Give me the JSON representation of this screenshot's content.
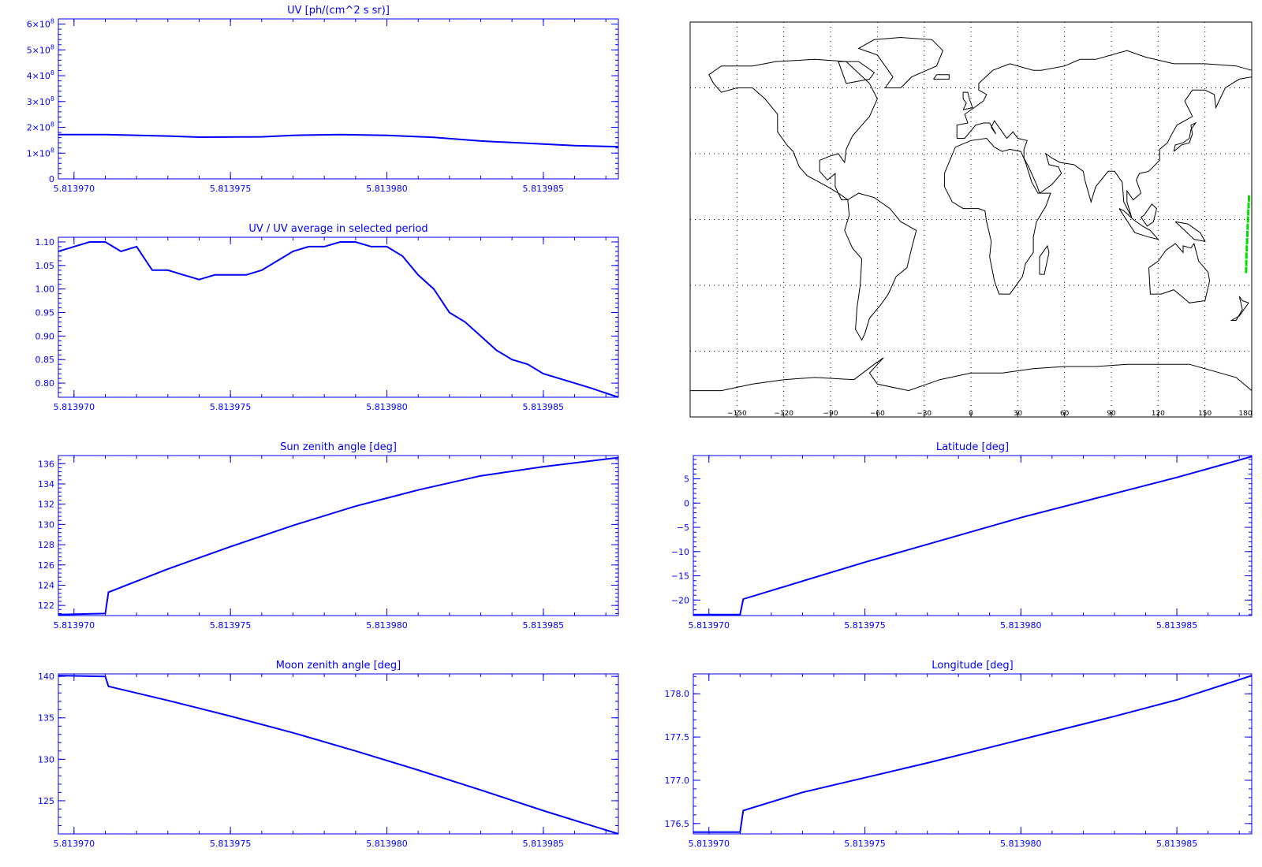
{
  "colors": {
    "plot": "#0000ff",
    "map_axis": "#000000",
    "map_track": "#00dd00",
    "background": "#ffffff"
  },
  "chart_data": [
    {
      "id": "uv",
      "type": "line",
      "title": "UV [ph/(cm^2 s sr)]",
      "xlim": [
        5.8139695,
        5.8139874
      ],
      "ylim": [
        0,
        6.2
      ],
      "x_ticks": [
        "5.813970",
        "5.813975",
        "5.813980",
        "5.813985"
      ],
      "x_tick_values": [
        5.81397,
        5.813975,
        5.81398,
        5.813985
      ],
      "y_ticks": [
        {
          "value": 0,
          "label": "0"
        },
        {
          "value": 1,
          "label": "1×10",
          "exp": "8"
        },
        {
          "value": 2,
          "label": "2×10",
          "exp": "8"
        },
        {
          "value": 3,
          "label": "3×10",
          "exp": "8"
        },
        {
          "value": 4,
          "label": "4×10",
          "exp": "8"
        },
        {
          "value": 5,
          "label": "5×10",
          "exp": "8"
        },
        {
          "value": 6,
          "label": "6×10",
          "exp": "8"
        }
      ],
      "x": [
        5.8139695,
        5.813971,
        5.813973,
        5.813974,
        5.813976,
        5.813977,
        5.8139785,
        5.81398,
        5.8139815,
        5.813983,
        5.8139845,
        5.813986,
        5.8139874
      ],
      "y": [
        1.72,
        1.72,
        1.66,
        1.62,
        1.63,
        1.69,
        1.72,
        1.69,
        1.61,
        1.47,
        1.38,
        1.29,
        1.25
      ]
    },
    {
      "id": "uv_ratio",
      "type": "line",
      "title": "UV / UV average in selected period",
      "xlim": [
        5.8139695,
        5.8139874
      ],
      "ylim": [
        0.77,
        1.11
      ],
      "x_ticks": [
        "5.813970",
        "5.813975",
        "5.813980",
        "5.813985"
      ],
      "x_tick_values": [
        5.81397,
        5.813975,
        5.81398,
        5.813985
      ],
      "y_ticks": [
        {
          "value": 0.8,
          "label": "0.80"
        },
        {
          "value": 0.85,
          "label": "0.85"
        },
        {
          "value": 0.9,
          "label": "0.90"
        },
        {
          "value": 0.95,
          "label": "0.95"
        },
        {
          "value": 1.0,
          "label": "1.00"
        },
        {
          "value": 1.05,
          "label": "1.05"
        },
        {
          "value": 1.1,
          "label": "1.10"
        }
      ],
      "x": [
        5.8139695,
        5.81397,
        5.8139705,
        5.813971,
        5.8139715,
        5.813972,
        5.8139725,
        5.813973,
        5.8139735,
        5.813974,
        5.8139745,
        5.813975,
        5.8139755,
        5.813976,
        5.8139765,
        5.813977,
        5.8139775,
        5.813978,
        5.8139785,
        5.813979,
        5.8139795,
        5.81398,
        5.8139805,
        5.813981,
        5.8139815,
        5.813982,
        5.8139825,
        5.813983,
        5.8139835,
        5.813984,
        5.8139845,
        5.813985,
        5.8139855,
        5.813986,
        5.8139865,
        5.8139874
      ],
      "y": [
        1.08,
        1.09,
        1.1,
        1.1,
        1.08,
        1.09,
        1.04,
        1.04,
        1.03,
        1.02,
        1.03,
        1.03,
        1.03,
        1.04,
        1.06,
        1.08,
        1.09,
        1.09,
        1.1,
        1.1,
        1.09,
        1.09,
        1.07,
        1.03,
        1.0,
        0.95,
        0.93,
        0.9,
        0.87,
        0.85,
        0.84,
        0.82,
        0.81,
        0.8,
        0.79,
        0.77
      ]
    },
    {
      "id": "sun_zenith",
      "type": "line",
      "title": "Sun zenith angle [deg]",
      "xlim": [
        5.8139695,
        5.8139874
      ],
      "ylim": [
        121,
        136.8
      ],
      "x_ticks": [
        "5.813970",
        "5.813975",
        "5.813980",
        "5.813985"
      ],
      "x_tick_values": [
        5.81397,
        5.813975,
        5.81398,
        5.813985
      ],
      "y_ticks": [
        {
          "value": 122,
          "label": "122"
        },
        {
          "value": 124,
          "label": "124"
        },
        {
          "value": 126,
          "label": "126"
        },
        {
          "value": 128,
          "label": "128"
        },
        {
          "value": 130,
          "label": "130"
        },
        {
          "value": 132,
          "label": "132"
        },
        {
          "value": 134,
          "label": "134"
        },
        {
          "value": 136,
          "label": "136"
        }
      ],
      "x": [
        5.8139695,
        5.813971,
        5.8139711,
        5.813973,
        5.813975,
        5.813977,
        5.813979,
        5.813981,
        5.813983,
        5.813985,
        5.8139874
      ],
      "y": [
        121.1,
        121.2,
        123.3,
        125.6,
        127.8,
        129.9,
        131.8,
        133.4,
        134.8,
        135.7,
        136.6
      ]
    },
    {
      "id": "moon_zenith",
      "type": "line",
      "title": "Moon zenith angle [deg]",
      "xlim": [
        5.8139695,
        5.8139874
      ],
      "ylim": [
        121,
        140.3
      ],
      "x_ticks": [
        "5.813970",
        "5.813975",
        "5.813980",
        "5.813985"
      ],
      "x_tick_values": [
        5.81397,
        5.813975,
        5.81398,
        5.813985
      ],
      "y_ticks": [
        {
          "value": 125,
          "label": "125"
        },
        {
          "value": 130,
          "label": "130"
        },
        {
          "value": 135,
          "label": "135"
        },
        {
          "value": 140,
          "label": "140"
        }
      ],
      "x": [
        5.8139695,
        5.813971,
        5.8139711,
        5.813973,
        5.813975,
        5.813977,
        5.813979,
        5.813981,
        5.813983,
        5.813985,
        5.8139874
      ],
      "y": [
        140.1,
        140.0,
        138.8,
        137.1,
        135.2,
        133.2,
        131.0,
        128.7,
        126.3,
        123.8,
        121.0
      ]
    },
    {
      "id": "latitude",
      "type": "line",
      "title": "Latitude [deg]",
      "xlim": [
        5.8139695,
        5.8139874
      ],
      "ylim": [
        -23.2,
        9.8
      ],
      "x_ticks": [
        "5.813970",
        "5.813975",
        "5.813980",
        "5.813985"
      ],
      "x_tick_values": [
        5.81397,
        5.813975,
        5.81398,
        5.813985
      ],
      "y_ticks": [
        {
          "value": -20,
          "label": "−20"
        },
        {
          "value": -15,
          "label": "−15"
        },
        {
          "value": -10,
          "label": "−10"
        },
        {
          "value": -5,
          "label": "−5"
        },
        {
          "value": 0,
          "label": "0"
        },
        {
          "value": 5,
          "label": "5"
        }
      ],
      "x": [
        5.8139695,
        5.813971,
        5.8139711,
        5.813975,
        5.81398,
        5.813985,
        5.8139874
      ],
      "y": [
        -23.0,
        -23.0,
        -19.8,
        -12.2,
        -3.0,
        5.3,
        9.6
      ]
    },
    {
      "id": "longitude",
      "type": "line",
      "title": "Longitude [deg]",
      "xlim": [
        5.8139695,
        5.8139874
      ],
      "ylim": [
        176.38,
        178.23
      ],
      "x_ticks": [
        "5.813970",
        "5.813975",
        "5.813980",
        "5.813985"
      ],
      "x_tick_values": [
        5.81397,
        5.813975,
        5.81398,
        5.813985
      ],
      "y_ticks": [
        {
          "value": 176.5,
          "label": "176.5"
        },
        {
          "value": 177.0,
          "label": "177.0"
        },
        {
          "value": 177.5,
          "label": "177.5"
        },
        {
          "value": 178.0,
          "label": "178.0"
        }
      ],
      "x": [
        5.8139695,
        5.813971,
        5.8139711,
        5.813973,
        5.813975,
        5.813977,
        5.813979,
        5.813981,
        5.813983,
        5.813985,
        5.8139874
      ],
      "y": [
        176.4,
        176.4,
        176.65,
        176.86,
        177.03,
        177.2,
        177.38,
        177.56,
        177.74,
        177.93,
        178.21
      ]
    },
    {
      "id": "map",
      "type": "scatter",
      "x_ticks": [
        "−150",
        "−120",
        "−90",
        "−60",
        "−30",
        "0",
        "30",
        "60",
        "90",
        "120",
        "150",
        "180"
      ],
      "x_tick_values": [
        -150,
        -120,
        -90,
        -60,
        -30,
        0,
        30,
        60,
        90,
        120,
        150,
        180
      ],
      "xlim": [
        -180,
        180
      ],
      "ylim": [
        -90,
        90
      ],
      "track": {
        "lon": [
          176.4,
          176.5,
          176.6,
          176.8,
          177.0,
          177.2,
          177.4,
          177.6,
          177.8,
          178.0,
          178.2
        ],
        "lat": [
          -23.0,
          -19.8,
          -16.5,
          -13.2,
          -9.9,
          -6.6,
          -3.3,
          0.0,
          3.2,
          6.4,
          9.6
        ]
      }
    }
  ]
}
